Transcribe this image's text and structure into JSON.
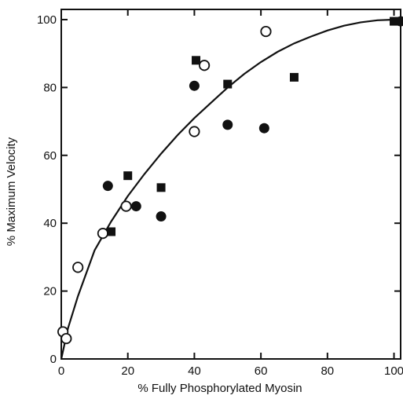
{
  "chart_data": {
    "type": "scatter",
    "title": "",
    "xlabel": "% Fully Phosphorylated Myosin",
    "ylabel": "% Maximum Velocity",
    "xlim": [
      0,
      102
    ],
    "ylim": [
      0,
      103
    ],
    "xticks": [
      0,
      20,
      40,
      60,
      80,
      100
    ],
    "yticks": [
      0,
      20,
      40,
      60,
      80,
      100
    ],
    "xtick_labels": [
      "0",
      "20",
      "40",
      "60",
      "80",
      "100"
    ],
    "ytick_labels": [
      "0",
      "20",
      "40",
      "60",
      "80",
      "100"
    ],
    "grid": false,
    "legend": "none",
    "series": [
      {
        "marker": "open-circle",
        "color": "#111111",
        "points": [
          [
            0.5,
            8
          ],
          [
            1.5,
            6
          ],
          [
            5,
            27
          ],
          [
            12.5,
            37
          ],
          [
            19.5,
            45
          ],
          [
            40,
            67
          ],
          [
            43,
            86.5
          ],
          [
            61.5,
            96.5
          ]
        ]
      },
      {
        "marker": "filled-circle",
        "color": "#111111",
        "points": [
          [
            14,
            51
          ],
          [
            22.5,
            45
          ],
          [
            30,
            42
          ],
          [
            40,
            80.5
          ],
          [
            50,
            69
          ],
          [
            61,
            68
          ],
          [
            102,
            99.5
          ]
        ]
      },
      {
        "marker": "filled-square",
        "color": "#111111",
        "points": [
          [
            15,
            37.5
          ],
          [
            20,
            54
          ],
          [
            30,
            50.5
          ],
          [
            40.5,
            88
          ],
          [
            50,
            81
          ],
          [
            70,
            83
          ],
          [
            100,
            99.5
          ]
        ]
      }
    ],
    "fit_curve": {
      "color": "#111111",
      "points": [
        [
          0,
          0
        ],
        [
          2,
          9
        ],
        [
          5,
          18.5
        ],
        [
          10,
          32
        ],
        [
          15,
          40.5
        ],
        [
          20,
          48
        ],
        [
          25,
          54.5
        ],
        [
          30,
          60.5
        ],
        [
          35,
          66
        ],
        [
          40,
          71
        ],
        [
          45,
          75.5
        ],
        [
          50,
          80
        ],
        [
          55,
          84
        ],
        [
          60,
          87.5
        ],
        [
          65,
          90.5
        ],
        [
          70,
          93
        ],
        [
          75,
          95
        ],
        [
          80,
          96.8
        ],
        [
          85,
          98.2
        ],
        [
          90,
          99.2
        ],
        [
          95,
          99.8
        ],
        [
          100,
          100
        ]
      ]
    }
  }
}
